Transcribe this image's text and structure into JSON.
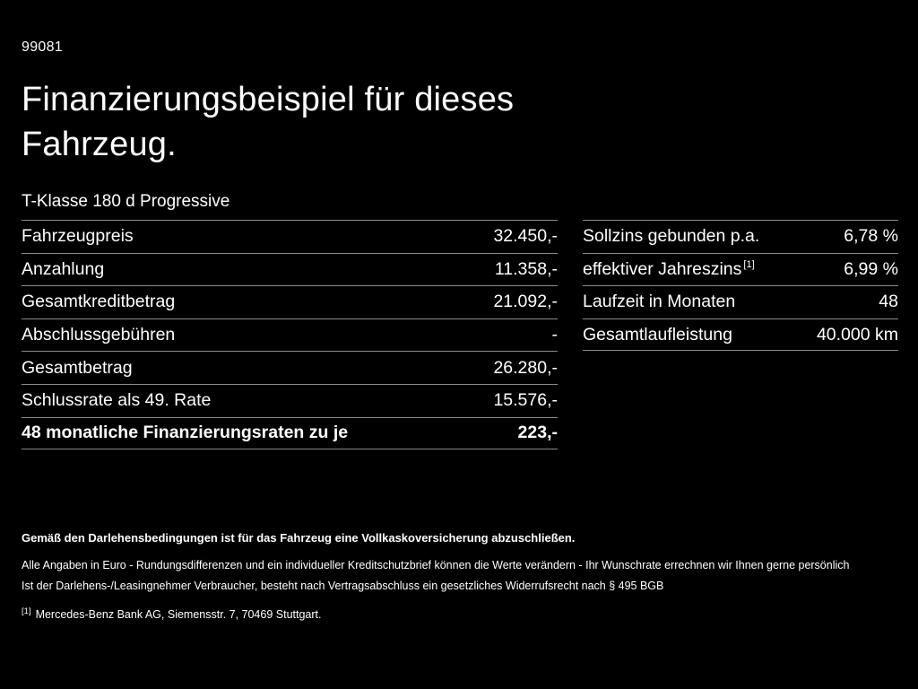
{
  "page": {
    "code": "99081",
    "title_line1": "Finanzierungsbeispiel für dieses",
    "title_line2": "Fahrzeug.",
    "subtitle": "T-Klasse 180 d Progressive"
  },
  "left_table": {
    "rows": [
      {
        "label": "Fahrzeugpreis",
        "value": "32.450,-"
      },
      {
        "label": "Anzahlung",
        "value": "11.358,-"
      },
      {
        "label": "Gesamtkreditbetrag",
        "value": "21.092,-"
      },
      {
        "label": "Abschlussgebühren",
        "value": "-"
      },
      {
        "label": "Gesamtbetrag",
        "value": "26.280,-"
      },
      {
        "label": "Schlussrate als 49. Rate",
        "value": "15.576,-"
      },
      {
        "label": "48 monatliche Finanzierungsraten zu je",
        "value": "223,-"
      }
    ]
  },
  "right_table": {
    "rows": [
      {
        "label": "Sollzins gebunden p.a.",
        "value": "6,78 %"
      },
      {
        "label": "effektiver Jahreszins",
        "sup": "[1]",
        "value": "6,99 %"
      },
      {
        "label": "Laufzeit in Monaten",
        "value": "48"
      },
      {
        "label": "Gesamtlaufleistung",
        "value": "40.000 km"
      }
    ]
  },
  "footer": {
    "insurance_note": "Gemäß den Darlehensbedingungen ist für das Fahrzeug eine Vollkaskoversicherung abzuschließen.",
    "line1": "Alle Angaben in Euro - Rundungsdifferenzen und ein individueller Kreditschutzbrief können die Werte verändern - Ihr Wunschrate errechnen wir Ihnen gerne persönlich",
    "line2": "Ist der Darlehens-/Leasingnehmer Verbraucher, besteht nach Vertragsabschluss ein gesetzliches Widerrufsrecht nach § 495 BGB",
    "footnote_marker": "[1]",
    "footnote_text": "Mercedes-Benz Bank AG, Siemensstr. 7, 70469 Stuttgart."
  }
}
